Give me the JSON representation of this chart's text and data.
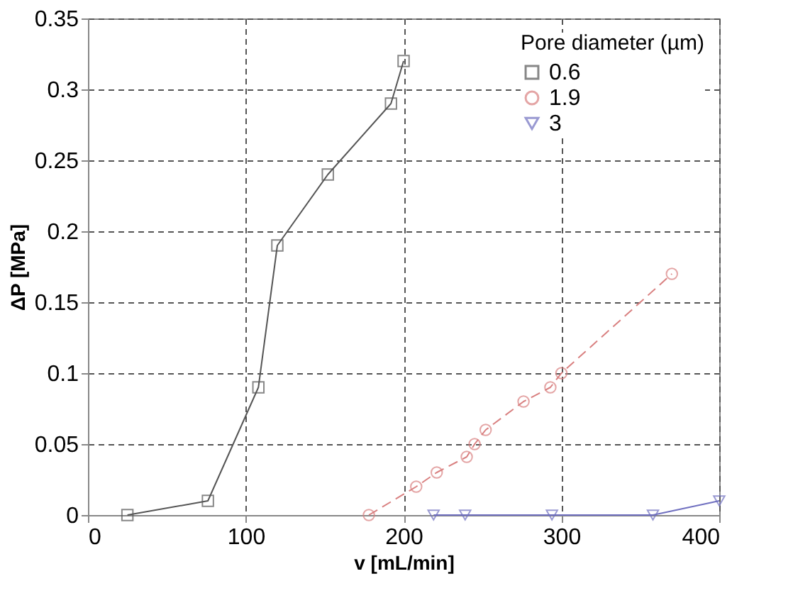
{
  "chart_data": {
    "type": "line",
    "xlabel": "v [mL/min]",
    "ylabel": "ΔP [MPa]",
    "legend_title": "Pore diameter (µm)",
    "legend": "top right",
    "grid": true,
    "xlim": [
      0,
      400
    ],
    "xticks": [
      0,
      100,
      200,
      300,
      400
    ],
    "ylim": [
      0,
      0.35
    ],
    "yticks": [
      0,
      0.05,
      0.1,
      0.15,
      0.2,
      0.25,
      0.3,
      0.35
    ],
    "series": [
      {
        "name": "0.6",
        "color": "#555555",
        "marker": "square",
        "line_style": "solid",
        "x": [
          25,
          76,
          108,
          120,
          152,
          192,
          200
        ],
        "values": [
          0,
          0.01,
          0.09,
          0.19,
          0.24,
          0.29,
          0.32
        ]
      },
      {
        "name": "1.9",
        "color": "#d98080",
        "marker": "circle",
        "line_style": "dashed",
        "x": [
          178,
          208,
          221,
          240,
          245,
          252,
          276,
          293,
          300,
          370
        ],
        "values": [
          0,
          0.02,
          0.03,
          0.041,
          0.05,
          0.06,
          0.08,
          0.09,
          0.1,
          0.17
        ]
      },
      {
        "name": "3",
        "color": "#7070c0",
        "marker": "triangle-down",
        "line_style": "solid",
        "x": [
          219,
          239,
          294,
          358,
          400
        ],
        "values": [
          0,
          0,
          0,
          0,
          0.01
        ]
      }
    ]
  }
}
